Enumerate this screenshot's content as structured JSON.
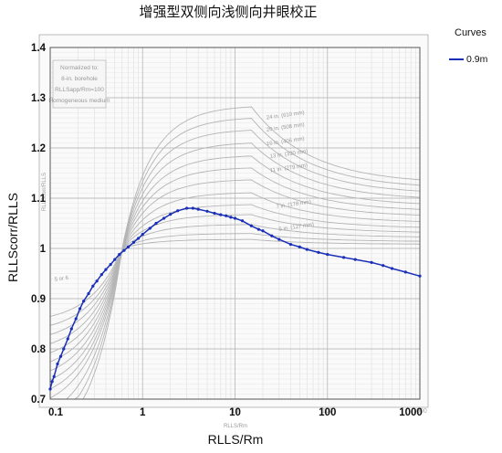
{
  "chart_data": {
    "type": "line",
    "title": "增强型双侧向浅侧向井眼校正",
    "xlabel": "RLLS/Rm",
    "ylabel": "RLLScorr/RLLS",
    "inner_xlabel": "RLLS/Rm",
    "inner_ylabel": "RLLScorr/RLLS",
    "xscale": "log",
    "xlim": [
      0.1,
      1000
    ],
    "ylim": [
      0.7,
      1.4
    ],
    "x_ticks": [
      "0.1",
      "1",
      "10",
      "100",
      "1000"
    ],
    "inner_x_ticks": [
      "1",
      "10",
      "100",
      "1000"
    ],
    "y_ticks": [
      "0.7",
      "0.8",
      "0.9",
      "1",
      "1.1",
      "1.2",
      "1.3",
      "1.4"
    ],
    "grid": true,
    "legend": {
      "title": "Curves",
      "position": "top-right",
      "entries": [
        "0.9m"
      ]
    },
    "note": [
      "Normalized to:",
      "8-in. borehole",
      "RLLSapp/Rm=100",
      "Homogeneous medium"
    ],
    "background_curve_labels": [
      "24 in. (610 mm)",
      "20 in. (508 mm)",
      "16 in. (406 mm)",
      "13 in. (330 mm)",
      "11 in. (279 mm)",
      "7 in. (178 mm)",
      "5 in. (127 mm)",
      "5 or 6"
    ],
    "series": [
      {
        "name": "0.9m",
        "color": "#1a2fb8",
        "x": [
          0.1,
          0.105,
          0.11,
          0.12,
          0.13,
          0.14,
          0.155,
          0.17,
          0.19,
          0.21,
          0.23,
          0.26,
          0.29,
          0.32,
          0.36,
          0.4,
          0.45,
          0.5,
          0.56,
          0.63,
          0.7,
          0.8,
          0.9,
          1.0,
          1.2,
          1.4,
          1.7,
          2.0,
          2.4,
          3.0,
          3.5,
          4.0,
          5.0,
          6.0,
          7.0,
          8.0,
          9.0,
          10,
          12,
          15,
          18,
          20,
          25,
          30,
          40,
          50,
          60,
          80,
          100,
          150,
          200,
          300,
          400,
          500,
          700,
          1000
        ],
        "y": [
          0.72,
          0.735,
          0.745,
          0.77,
          0.785,
          0.8,
          0.82,
          0.84,
          0.86,
          0.88,
          0.895,
          0.91,
          0.925,
          0.935,
          0.948,
          0.958,
          0.968,
          0.978,
          0.988,
          0.996,
          1.003,
          1.012,
          1.02,
          1.028,
          1.04,
          1.05,
          1.06,
          1.068,
          1.075,
          1.08,
          1.08,
          1.078,
          1.074,
          1.07,
          1.067,
          1.065,
          1.062,
          1.06,
          1.055,
          1.045,
          1.038,
          1.035,
          1.025,
          1.018,
          1.008,
          1.003,
          0.998,
          0.992,
          0.988,
          0.982,
          0.978,
          0.972,
          0.966,
          0.96,
          0.953,
          0.945
        ]
      }
    ]
  }
}
